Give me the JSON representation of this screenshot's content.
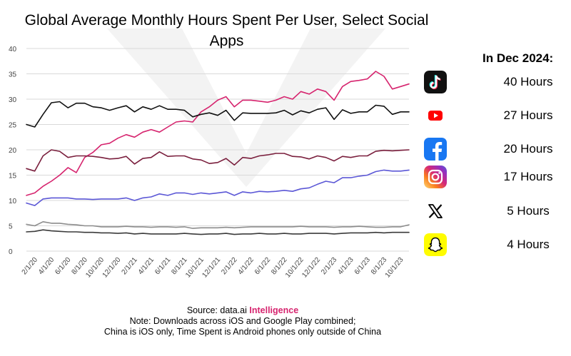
{
  "title": "Global Average Monthly Hours Spent Per User, Select Social Apps",
  "side_panel": {
    "heading": "In Dec 2024:",
    "apps": [
      {
        "icon": "tiktok-icon",
        "hours": "40 Hours"
      },
      {
        "icon": "youtube-icon",
        "hours": "27 Hours"
      },
      {
        "icon": "facebook-icon",
        "hours": "20 Hours"
      },
      {
        "icon": "instagram-icon",
        "hours": "17 Hours"
      },
      {
        "icon": "x-icon",
        "hours": "5 Hours"
      },
      {
        "icon": "snapchat-icon",
        "hours": "4 Hours"
      }
    ]
  },
  "footer": {
    "source_prefix": "Source: data.ai ",
    "source_accent": "Intelligence",
    "accent_color": "#d6246e",
    "note_line1": "Note: Downloads across iOS and Google Play combined;",
    "note_line2": "China is iOS only, Time Spent is Android phones only outside of China"
  },
  "chart_data": {
    "type": "line",
    "title": "Global Average Monthly Hours Spent Per User, Select Social Apps",
    "xlabel": "",
    "ylabel": "",
    "ylim": [
      0,
      40
    ],
    "yticks": [
      0,
      5,
      10,
      15,
      20,
      25,
      30,
      35,
      40
    ],
    "grid": true,
    "x_tick_labels": [
      "2/1/20",
      "4/1/20",
      "6/1/20",
      "8/1/20",
      "10/1/20",
      "12/1/20",
      "2/1/21",
      "4/1/21",
      "6/1/21",
      "8/1/21",
      "10/1/21",
      "12/1/21",
      "2/1/22",
      "4/1/22",
      "6/1/22",
      "8/1/22",
      "10/1/22",
      "12/1/22",
      "2/1/23",
      "4/1/23",
      "6/1/23",
      "8/1/23",
      "10/1/23"
    ],
    "x": [
      "1/1/20",
      "2/1/20",
      "3/1/20",
      "4/1/20",
      "5/1/20",
      "6/1/20",
      "7/1/20",
      "8/1/20",
      "9/1/20",
      "10/1/20",
      "11/1/20",
      "12/1/20",
      "1/1/21",
      "2/1/21",
      "3/1/21",
      "4/1/21",
      "5/1/21",
      "6/1/21",
      "7/1/21",
      "8/1/21",
      "9/1/21",
      "10/1/21",
      "11/1/21",
      "12/1/21",
      "1/1/22",
      "2/1/22",
      "3/1/22",
      "4/1/22",
      "5/1/22",
      "6/1/22",
      "7/1/22",
      "8/1/22",
      "9/1/22",
      "10/1/22",
      "11/1/22",
      "12/1/22",
      "1/1/23",
      "2/1/23",
      "3/1/23",
      "4/1/23",
      "5/1/23",
      "6/1/23",
      "7/1/23",
      "8/1/23",
      "9/1/23",
      "10/1/23",
      "11/1/23"
    ],
    "series": [
      {
        "name": "",
        "color": "#d6246e",
        "values": [
          11.0,
          11.5,
          12.8,
          13.8,
          15.0,
          16.5,
          15.5,
          18.5,
          19.5,
          21.0,
          21.3,
          22.3,
          23.0,
          22.5,
          23.5,
          24.0,
          23.5,
          24.5,
          25.5,
          25.7,
          25.5,
          27.5,
          28.5,
          29.8,
          30.5,
          28.5,
          29.8,
          29.8,
          29.6,
          29.4,
          29.8,
          30.5,
          30.0,
          31.5,
          31.0,
          32.0,
          31.5,
          29.8,
          32.5,
          33.5,
          33.7,
          34.0,
          35.5,
          34.5,
          32.0,
          32.5,
          33.0
        ]
      },
      {
        "name": "",
        "color": "#111111",
        "values": [
          25.0,
          24.5,
          27.0,
          29.3,
          29.5,
          28.3,
          29.2,
          29.2,
          28.5,
          28.3,
          27.8,
          28.3,
          28.7,
          27.5,
          28.5,
          28.0,
          28.7,
          28.0,
          28.0,
          27.8,
          26.5,
          27.0,
          27.3,
          26.8,
          27.8,
          25.8,
          27.3,
          27.2,
          27.2,
          27.2,
          27.3,
          27.8,
          26.9,
          27.7,
          27.3,
          28.0,
          28.3,
          26.0,
          27.9,
          27.2,
          27.5,
          27.5,
          28.8,
          28.6,
          27.0,
          27.5,
          27.5
        ]
      },
      {
        "name": "",
        "color": "#7a1f3d",
        "values": [
          16.3,
          15.8,
          18.8,
          20.0,
          19.7,
          18.5,
          18.8,
          18.8,
          18.7,
          18.5,
          18.2,
          18.3,
          18.7,
          17.2,
          18.3,
          18.5,
          19.6,
          18.7,
          18.8,
          18.8,
          18.2,
          18.0,
          17.3,
          17.5,
          18.3,
          17.0,
          18.5,
          18.3,
          18.8,
          19.0,
          19.3,
          19.3,
          18.7,
          18.6,
          18.2,
          18.8,
          18.5,
          17.8,
          18.7,
          18.5,
          18.8,
          18.8,
          19.7,
          19.9,
          19.8,
          19.9,
          20.0
        ]
      },
      {
        "name": "",
        "color": "#5b57d6",
        "values": [
          9.5,
          9.0,
          10.3,
          10.5,
          10.5,
          10.5,
          10.3,
          10.3,
          10.2,
          10.3,
          10.3,
          10.3,
          10.5,
          10.0,
          10.5,
          10.7,
          11.3,
          11.0,
          11.5,
          11.5,
          11.2,
          11.5,
          11.3,
          11.5,
          11.7,
          11.0,
          11.7,
          11.5,
          11.8,
          11.7,
          11.8,
          12.0,
          11.8,
          12.3,
          12.5,
          13.2,
          13.8,
          13.5,
          14.5,
          14.5,
          14.8,
          15.0,
          15.7,
          16.0,
          15.8,
          15.8,
          16.0
        ]
      },
      {
        "name": "",
        "color": "#8c8c8c",
        "values": [
          5.3,
          5.0,
          5.8,
          5.5,
          5.5,
          5.3,
          5.2,
          5.0,
          5.0,
          4.8,
          4.8,
          4.8,
          4.9,
          4.8,
          4.8,
          4.7,
          4.8,
          4.8,
          4.7,
          4.8,
          4.5,
          4.6,
          4.6,
          4.6,
          4.7,
          4.6,
          4.7,
          4.8,
          4.8,
          4.8,
          4.8,
          4.8,
          4.8,
          4.9,
          4.8,
          4.8,
          4.8,
          4.7,
          4.8,
          4.8,
          4.9,
          4.8,
          4.7,
          4.7,
          4.8,
          4.8,
          5.2
        ]
      },
      {
        "name": "",
        "color": "#3a3a3a",
        "values": [
          3.8,
          3.9,
          4.2,
          4.0,
          3.9,
          3.8,
          3.8,
          3.7,
          3.7,
          3.6,
          3.6,
          3.5,
          3.6,
          3.4,
          3.5,
          3.4,
          3.4,
          3.4,
          3.4,
          3.5,
          3.4,
          3.3,
          3.4,
          3.4,
          3.5,
          3.3,
          3.4,
          3.4,
          3.5,
          3.4,
          3.4,
          3.5,
          3.4,
          3.4,
          3.5,
          3.5,
          3.5,
          3.4,
          3.5,
          3.6,
          3.6,
          3.6,
          3.7,
          3.6,
          3.7,
          3.7,
          3.7
        ]
      }
    ]
  }
}
